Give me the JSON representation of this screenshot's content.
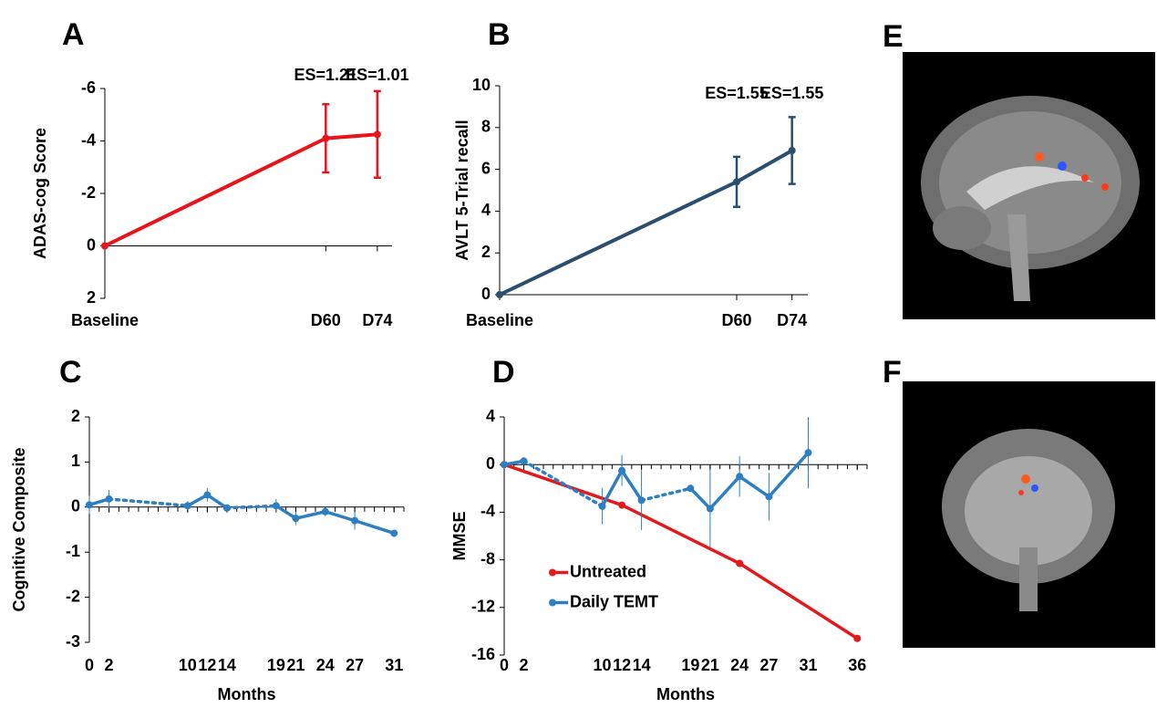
{
  "chart_data": [
    {
      "type": "line",
      "label": "A",
      "ylabel": "ADAS-cog Score",
      "xlim": [
        0,
        78
      ],
      "ylim": [
        2,
        -6
      ],
      "yticks": [
        -6,
        -4,
        -2,
        0,
        2
      ],
      "xticks": [
        {
          "value": 0,
          "label": "Baseline"
        },
        {
          "value": 60,
          "label": "D60"
        },
        {
          "value": 74,
          "label": "D74"
        }
      ],
      "error_caps": true,
      "series": [
        {
          "color": "#e8141b",
          "x": [
            0,
            60,
            74
          ],
          "values": [
            0,
            -4.1,
            -4.25
          ],
          "errors": [
            0,
            1.3,
            1.65
          ],
          "value_annotations": [
            null,
            "ES=1.21",
            "ES=1.01"
          ]
        }
      ]
    },
    {
      "type": "line",
      "label": "B",
      "ylabel": "AVLT 5-Trial recall",
      "xlim": [
        0,
        78
      ],
      "ylim": [
        0,
        10
      ],
      "yticks": [
        0,
        2,
        4,
        6,
        8,
        10
      ],
      "xticks": [
        {
          "value": 0,
          "label": "Baseline"
        },
        {
          "value": 60,
          "label": "D60"
        },
        {
          "value": 74,
          "label": "D74"
        }
      ],
      "error_caps": true,
      "series": [
        {
          "color": "#2b4d6e",
          "x": [
            0,
            60,
            74
          ],
          "values": [
            0,
            5.4,
            6.9
          ],
          "errors": [
            0,
            1.2,
            1.6
          ],
          "value_annotations": [
            null,
            "ES=1.55",
            "ES=1.55"
          ]
        }
      ]
    },
    {
      "type": "line",
      "label": "C",
      "ylabel": "Cognitive Composite",
      "xlabel": "Months",
      "xlim": [
        0,
        32
      ],
      "ylim": [
        -3,
        2
      ],
      "yticks": [
        -3,
        -2,
        -1,
        0,
        1,
        2
      ],
      "xticks": [
        0,
        2,
        10,
        12,
        14,
        19,
        21,
        24,
        27,
        31
      ],
      "error_caps": false,
      "series": [
        {
          "color": "#2e7fc1",
          "x": [
            0,
            2,
            10,
            12,
            14,
            19,
            21,
            24,
            27,
            31
          ],
          "values": [
            0.05,
            0.18,
            0.03,
            0.27,
            -0.02,
            0.03,
            -0.25,
            -0.1,
            -0.3,
            -0.58
          ],
          "errors": [
            0.2,
            0.2,
            0.1,
            0.15,
            0.05,
            0.15,
            0.15,
            0.1,
            0.2,
            0.05
          ],
          "segment_styles": [
            "solid",
            "dotted",
            "solid",
            "solid",
            "dotted",
            "solid",
            "solid",
            "solid",
            "solid"
          ]
        }
      ]
    },
    {
      "type": "line",
      "label": "D",
      "ylabel": "MMSE",
      "xlabel": "Months",
      "legend": "center left",
      "xlim": [
        0,
        37
      ],
      "ylim": [
        -16,
        4
      ],
      "yticks": [
        -16,
        -12,
        -8,
        -4,
        0,
        4
      ],
      "xticks": [
        0,
        2,
        10,
        12,
        14,
        19,
        21,
        24,
        27,
        31,
        36
      ],
      "error_caps": false,
      "series": [
        {
          "name": "Untreated",
          "color": "#e31a1c",
          "x": [
            0,
            12,
            24,
            36
          ],
          "values": [
            0,
            -3.4,
            -8.3,
            -14.6
          ]
        },
        {
          "name": "Daily TEMT",
          "color": "#2e7fc1",
          "x": [
            0,
            2,
            10,
            12,
            14,
            19,
            21,
            24,
            27,
            31
          ],
          "values": [
            0,
            0.3,
            -3.5,
            -0.5,
            -3.0,
            -2.0,
            -3.7,
            -1.0,
            -2.7,
            1.0
          ],
          "errors": [
            0,
            0.3,
            1.5,
            1.3,
            2.5,
            0,
            3.3,
            1.7,
            2.0,
            3.0
          ],
          "segment_styles": [
            "solid",
            "dotted",
            "solid",
            "solid",
            "dotted",
            "solid",
            "solid",
            "solid",
            "solid"
          ]
        }
      ]
    }
  ],
  "images": [
    {
      "label": "E"
    },
    {
      "label": "F"
    }
  ]
}
